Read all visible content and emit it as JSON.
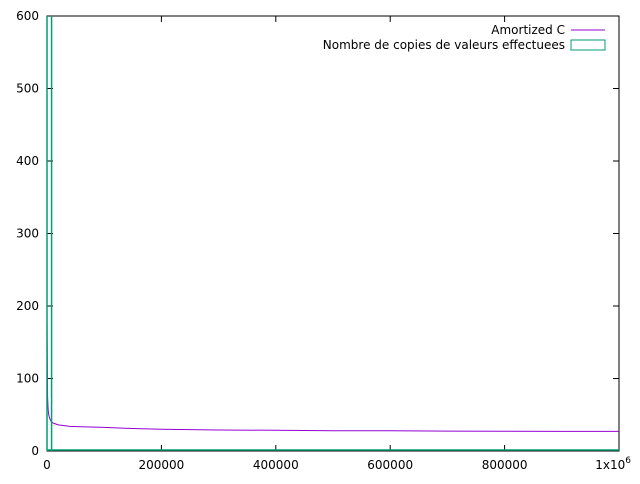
{
  "chart_data": {
    "type": "line",
    "xlim": [
      0,
      1000000
    ],
    "ylim": [
      0,
      600
    ],
    "x_ticks": [
      0,
      200000,
      400000,
      600000,
      800000,
      1000000
    ],
    "y_ticks": [
      0,
      100,
      200,
      300,
      400,
      500,
      600
    ],
    "x_tick_labels": [
      "0",
      "200000",
      "400000",
      "600000",
      "800000",
      "1x10"
    ],
    "x_tick_exponent": "6",
    "y_tick_labels": [
      "0",
      "100",
      "200",
      "300",
      "400",
      "500",
      "600"
    ],
    "legend_position": "top-right",
    "grid": false,
    "series": [
      {
        "name": "Amortized C",
        "type": "line",
        "color": "#9400d3",
        "x": [
          1,
          1000,
          2000,
          3000,
          5000,
          8000,
          12000,
          20000,
          30000,
          40000,
          60000,
          100000,
          150000,
          200000,
          300000,
          400000,
          500000,
          600000,
          700000,
          800000,
          900000,
          1000000
        ],
        "y": [
          180,
          75,
          58,
          50,
          44,
          40,
          38,
          36,
          35,
          34,
          33.5,
          32.5,
          31,
          30,
          29,
          28.5,
          28,
          27.8,
          27.5,
          27.3,
          27.1,
          27
        ]
      },
      {
        "name": "Nombre de copies de valeurs effectuees",
        "type": "impulses",
        "color": "#009e73",
        "x": [
          0,
          8000
        ],
        "y": [
          600,
          600
        ]
      }
    ]
  }
}
